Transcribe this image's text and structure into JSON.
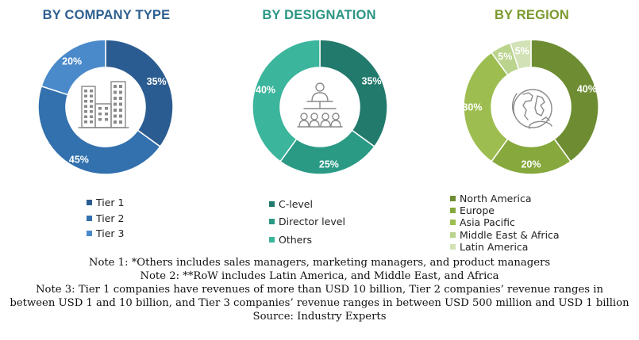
{
  "colors": {
    "company_title": "#2E5F8F",
    "designation_title": "#2A9583",
    "region_title": "#7B9A2E"
  },
  "chart_data": [
    {
      "type": "pie",
      "title": "BY COMPANY TYPE",
      "categories": [
        "Tier 1",
        "Tier 2",
        "Tier 3"
      ],
      "values": [
        35,
        45,
        20
      ],
      "labels": [
        "35%",
        "45%",
        "20%"
      ],
      "colors": [
        "#2B5C91",
        "#3270AE",
        "#4A8ACB"
      ],
      "legend_position": "bottom",
      "icon": "buildings-icon"
    },
    {
      "type": "pie",
      "title": "BY DESIGNATION",
      "categories": [
        "C-level",
        "Director level",
        "Others"
      ],
      "values": [
        35,
        25,
        40
      ],
      "labels": [
        "35%",
        "25%",
        "40%"
      ],
      "colors": [
        "#227A6C",
        "#2A9A85",
        "#3BB59C"
      ],
      "legend_position": "bottom",
      "icon": "meeting-icon"
    },
    {
      "type": "pie",
      "title": "BY REGION",
      "categories": [
        "North America",
        "Europe",
        "Asia Pacific",
        "Middle East & Africa",
        "Latin America"
      ],
      "values": [
        40,
        20,
        30,
        5,
        5
      ],
      "labels": [
        "40%",
        "20%",
        "30%",
        "5%",
        "5%"
      ],
      "colors": [
        "#6E8D32",
        "#86A83C",
        "#9DBD50",
        "#BAD38D",
        "#D2E2B6"
      ],
      "legend_position": "bottom",
      "icon": "globe-icon"
    }
  ],
  "notes": [
    "Note 1: *Others includes sales managers, marketing managers, and product managers",
    "Note 2: **RoW includes Latin America, and Middle East, and Africa",
    "Note 3: Tier 1 companies have revenues of more than USD 10 billion, Tier 2 companies’ revenue ranges in",
    "between USD 1 and 10 billion, and Tier 3 companies’ revenue ranges in between USD 500 million and USD 1 billion",
    "Source: Industry Experts"
  ]
}
